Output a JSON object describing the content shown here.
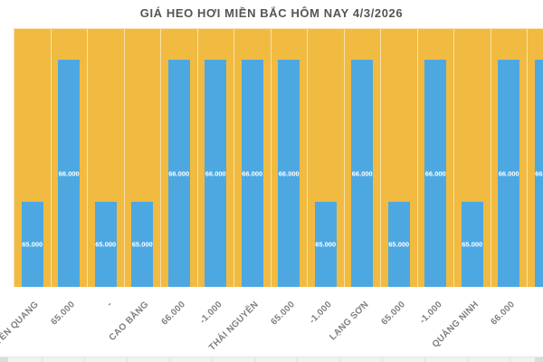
{
  "chart_data": {
    "type": "bar",
    "title": "GIÁ HEO HƠI MIỀN BẮC HÔM NAY 4/3/2026",
    "xlabel": "",
    "ylabel": "",
    "ylim": [
      64400,
      66220
    ],
    "grid": false,
    "legend": null,
    "categories": [
      "TUYÊN QUANG",
      "65.000",
      "-",
      "CAO BẰNG",
      "66.000",
      "-1.000",
      "THÁI NGUYÊN",
      "65.000",
      "-1.000",
      "LẠNG SƠN",
      "65.000",
      "-1.000",
      "QUẢNG NINH",
      "66.000",
      ""
    ],
    "values": [
      65000,
      66000,
      65000,
      65000,
      66000,
      66000,
      66000,
      66000,
      65000,
      66000,
      65000,
      66000,
      65000,
      66000,
      66000
    ],
    "bar_labels": [
      "65.000",
      "66.000",
      "65.000",
      "65.000",
      "66.000",
      "66.000",
      "66.000",
      "66.000",
      "65.000",
      "66.000",
      "65.000",
      "66.000",
      "65.000",
      "66.000",
      "66.000"
    ],
    "colors": {
      "bar": "#4DA8E2",
      "plot_background": "#F1BA41",
      "panel_divider": "rgba(255,255,255,0.55)",
      "title_text": "#555555",
      "tick_text": "#7f7f7f",
      "value_label_text": "#ffffff"
    }
  }
}
